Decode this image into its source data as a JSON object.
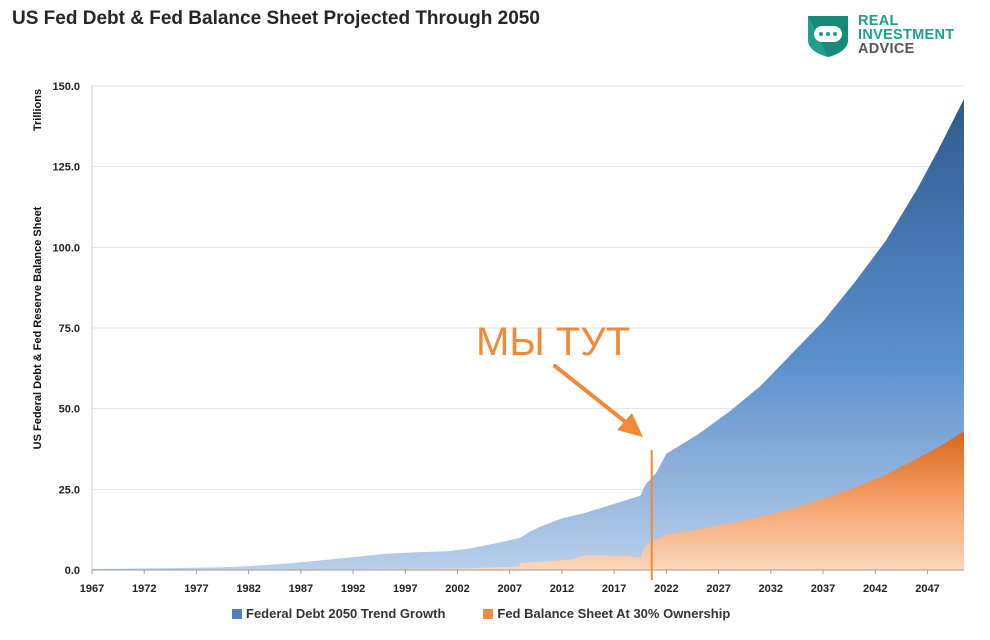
{
  "title": "US Fed Debt & Fed Balance Sheet Projected Through 2050",
  "logo": {
    "line1": "REAL",
    "line2": "INVESTMENT",
    "line3": "ADVICE"
  },
  "annotation": "МЫ ТУТ",
  "colors": {
    "debt_top": "#2e5a8e",
    "debt_mid": "#5b8fcc",
    "debt_light": "#b9cfe9",
    "bs_top": "#d9661c",
    "bs_mid": "#f4a068",
    "bs_light": "#fcd7bc",
    "marker": "#f08a38",
    "grid": "#e3e3e3"
  },
  "legend": [
    {
      "label": "Federal Debt 2050 Trend Growth",
      "color": "#4f7fbf"
    },
    {
      "label": "Fed Balance Sheet At 30% Ownership",
      "color": "#ef8a45"
    }
  ],
  "chart_data": {
    "type": "area",
    "title": "US Fed Debt & Fed Balance Sheet Projected Through 2050",
    "ylabel": "US Federal Debt & Fed Reserve Balance Sheet",
    "yunit": "Trillions",
    "ylim": [
      0,
      150
    ],
    "yticks": [
      "0.0",
      "25.0",
      "50.0",
      "75.0",
      "100.0",
      "125.0",
      "150.0"
    ],
    "xticks": [
      "1967",
      "1972",
      "1977",
      "1982",
      "1987",
      "1992",
      "1997",
      "2002",
      "2007",
      "2012",
      "2017",
      "2022",
      "2027",
      "2032",
      "2037",
      "2042",
      "2047"
    ],
    "xlim": [
      1967,
      2050.5
    ],
    "grid": true,
    "legend_position": "bottom",
    "marker_year": 2020.6,
    "series": [
      {
        "name": "Federal Debt 2050 Trend Growth",
        "x": [
          1967,
          1970,
          1975,
          1980,
          1983,
          1986,
          1989,
          1992,
          1995,
          1998,
          2001,
          2003,
          2006,
          2008,
          2009,
          2010,
          2012,
          2014,
          2016,
          2018,
          2019.5,
          2020,
          2021,
          2022,
          2025,
          2028,
          2031,
          2034,
          2037,
          2040,
          2043,
          2046,
          2048,
          2050.5
        ],
        "values": [
          0.3,
          0.4,
          0.6,
          0.9,
          1.4,
          2.1,
          3.0,
          4.0,
          5.0,
          5.5,
          5.8,
          6.6,
          8.5,
          10.0,
          12.0,
          13.5,
          16.0,
          17.5,
          19.5,
          21.5,
          23.0,
          26.5,
          30.0,
          36.0,
          42.0,
          49.0,
          57.0,
          67.0,
          77.0,
          89.0,
          102.0,
          118.0,
          130.0,
          146.0
        ]
      },
      {
        "name": "Fed Balance Sheet At 30% Ownership",
        "x": [
          1967,
          1980,
          2000,
          2003,
          2007.9,
          2008,
          2010,
          2013,
          2014,
          2016,
          2018,
          2019.5,
          2020,
          2021,
          2022,
          2025,
          2028,
          2031,
          2034,
          2037,
          2040,
          2043,
          2046,
          2048,
          2050.5
        ],
        "values": [
          0.05,
          0.1,
          0.4,
          0.6,
          1.1,
          2.2,
          2.5,
          3.3,
          4.5,
          4.5,
          4.4,
          3.9,
          7.5,
          9.5,
          11.0,
          12.6,
          14.5,
          16.5,
          19.0,
          22.0,
          25.5,
          29.5,
          34.5,
          38.0,
          43.0
        ]
      }
    ]
  }
}
